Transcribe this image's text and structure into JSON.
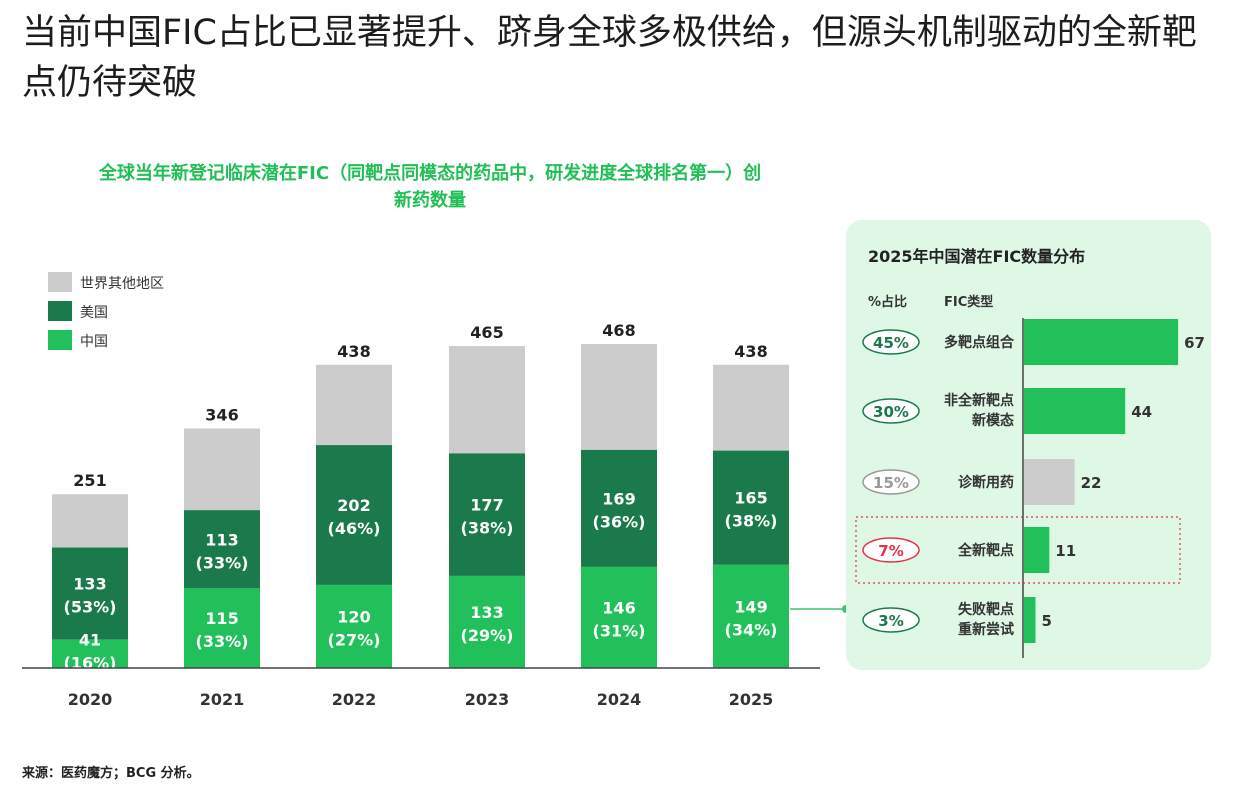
{
  "title": "当前中国FIC占比已显著提升、跻身全球多极供给，但源头机制驱动的全新靶点仍待突破",
  "source": "来源：医药魔方；BCG 分析。",
  "colors": {
    "other": "#cccccc",
    "us": "#1b7a4b",
    "china": "#22c05a",
    "panel_bg": "#dff7e5",
    "red": "#e0344a"
  },
  "chart_data": [
    {
      "type": "bar",
      "stacked": true,
      "title": "全球当年新登记临床潜在FIC（同靶点同模态的药品中，研发进度全球排名第一）创新药数量",
      "categories": [
        "2020",
        "2021",
        "2022",
        "2023",
        "2024",
        "2025"
      ],
      "legend": [
        "世界其他地区",
        "美国",
        "中国"
      ],
      "totals": [
        251,
        346,
        438,
        465,
        468,
        438
      ],
      "series": [
        {
          "name": "中国",
          "values": [
            41,
            115,
            120,
            133,
            146,
            149
          ],
          "pct": [
            "(16%)",
            "(33%)",
            "(27%)",
            "(29%)",
            "(31%)",
            "(34%)"
          ]
        },
        {
          "name": "美国",
          "values": [
            133,
            113,
            202,
            177,
            169,
            165
          ],
          "pct": [
            "(53%)",
            "(33%)",
            "(46%)",
            "(38%)",
            "(36%)",
            "(38%)"
          ]
        },
        {
          "name": "世界其他地区",
          "values": [
            77,
            118,
            116,
            155,
            153,
            124
          ]
        }
      ],
      "ylim": [
        0,
        480
      ]
    },
    {
      "type": "bar",
      "orientation": "horizontal",
      "title": "2025年中国潜在FIC数量分布",
      "col_pct": "%占比",
      "col_type": "FIC类型",
      "categories": [
        "多靶点组合",
        "非全新靶点新模态",
        "诊断用药",
        "全新靶点",
        "失败靶点重新尝试"
      ],
      "category_lines": [
        [
          "多靶点组合"
        ],
        [
          "非全新靶点",
          "新模态"
        ],
        [
          "诊断用药"
        ],
        [
          "全新靶点"
        ],
        [
          "失败靶点",
          "重新尝试"
        ]
      ],
      "values": [
        67,
        44,
        22,
        11,
        5
      ],
      "pct": [
        "45%",
        "30%",
        "15%",
        "7%",
        "3%"
      ],
      "bar_colors": [
        "#22c05a",
        "#22c05a",
        "#cccccc",
        "#22c05a",
        "#22c05a"
      ],
      "pct_colors": [
        "#1b7a4b",
        "#1b7a4b",
        "#999999",
        "#e0344a",
        "#1b7a4b"
      ],
      "highlight_index": 3
    }
  ]
}
